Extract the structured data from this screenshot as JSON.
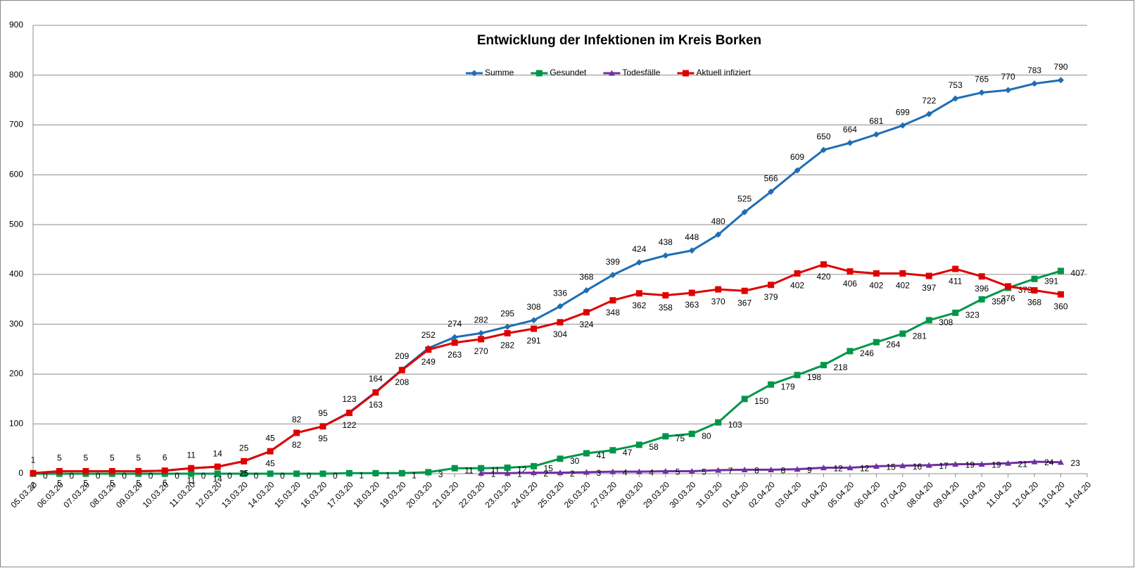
{
  "chart_data": {
    "type": "line",
    "title": "Entwicklung der Infektionen im Kreis Borken",
    "categories": [
      "05.03.20",
      "06.03.20",
      "07.03.20",
      "08.03.20",
      "09.03.20",
      "10.03.20",
      "11.03.20",
      "12.03.20",
      "13.03.20",
      "14.03.20",
      "15.03.20",
      "16.03.20",
      "17.03.20",
      "18.03.20",
      "19.03.20",
      "20.03.20",
      "21.03.20",
      "22.03.20",
      "23.03.20",
      "24.03.20",
      "25.03.20",
      "26.03.20",
      "27.03.20",
      "28.03.20",
      "29.03.20",
      "30.03.20",
      "31.03.20",
      "01.04.20",
      "02.04.20",
      "03.04.20",
      "04.04.20",
      "05.04.20",
      "06.04.20",
      "07.04.20",
      "08.04.20",
      "09.04.20",
      "10.04.20",
      "11.04.20",
      "12.04.20",
      "13.04.20",
      "14.04.20"
    ],
    "series": [
      {
        "name": "Summe",
        "color": "#1f6db4",
        "marker": "diamond",
        "values": [
          1,
          5,
          5,
          5,
          5,
          6,
          11,
          14,
          25,
          45,
          82,
          95,
          123,
          164,
          209,
          252,
          274,
          282,
          295,
          308,
          336,
          368,
          399,
          424,
          438,
          448,
          480,
          525,
          566,
          609,
          650,
          664,
          681,
          699,
          722,
          753,
          765,
          770,
          783,
          790,
          null
        ]
      },
      {
        "name": "Gesundet",
        "color": "#00964a",
        "marker": "square",
        "values": [
          0,
          0,
          0,
          0,
          0,
          0,
          0,
          0,
          0,
          0,
          0,
          0,
          1,
          1,
          1,
          3,
          11,
          11,
          12,
          15,
          30,
          41,
          47,
          58,
          75,
          80,
          103,
          150,
          179,
          198,
          218,
          246,
          264,
          281,
          308,
          323,
          350,
          373,
          391,
          407,
          null
        ]
      },
      {
        "name": "Todesfälle",
        "color": "#7030a0",
        "marker": "triangle",
        "values": [
          null,
          null,
          null,
          null,
          null,
          null,
          null,
          null,
          null,
          null,
          null,
          null,
          null,
          null,
          null,
          null,
          null,
          1,
          1,
          2,
          2,
          3,
          4,
          4,
          5,
          5,
          7,
          8,
          8,
          9,
          12,
          12,
          15,
          16,
          17,
          19,
          19,
          21,
          24,
          23,
          null
        ]
      },
      {
        "name": "Aktuell infiziert",
        "color": "#e00000",
        "marker": "square",
        "values": [
          1,
          5,
          5,
          5,
          5,
          6,
          11,
          14,
          25,
          45,
          82,
          95,
          122,
          163,
          208,
          249,
          263,
          270,
          282,
          291,
          304,
          324,
          348,
          362,
          358,
          363,
          370,
          367,
          379,
          402,
          420,
          406,
          402,
          402,
          397,
          411,
          396,
          376,
          368,
          360,
          null
        ]
      }
    ],
    "ylim": [
      0,
      900
    ],
    "yticks": [
      0,
      100,
      200,
      300,
      400,
      500,
      600,
      700,
      800,
      900
    ],
    "grid": true,
    "legend": "top"
  }
}
